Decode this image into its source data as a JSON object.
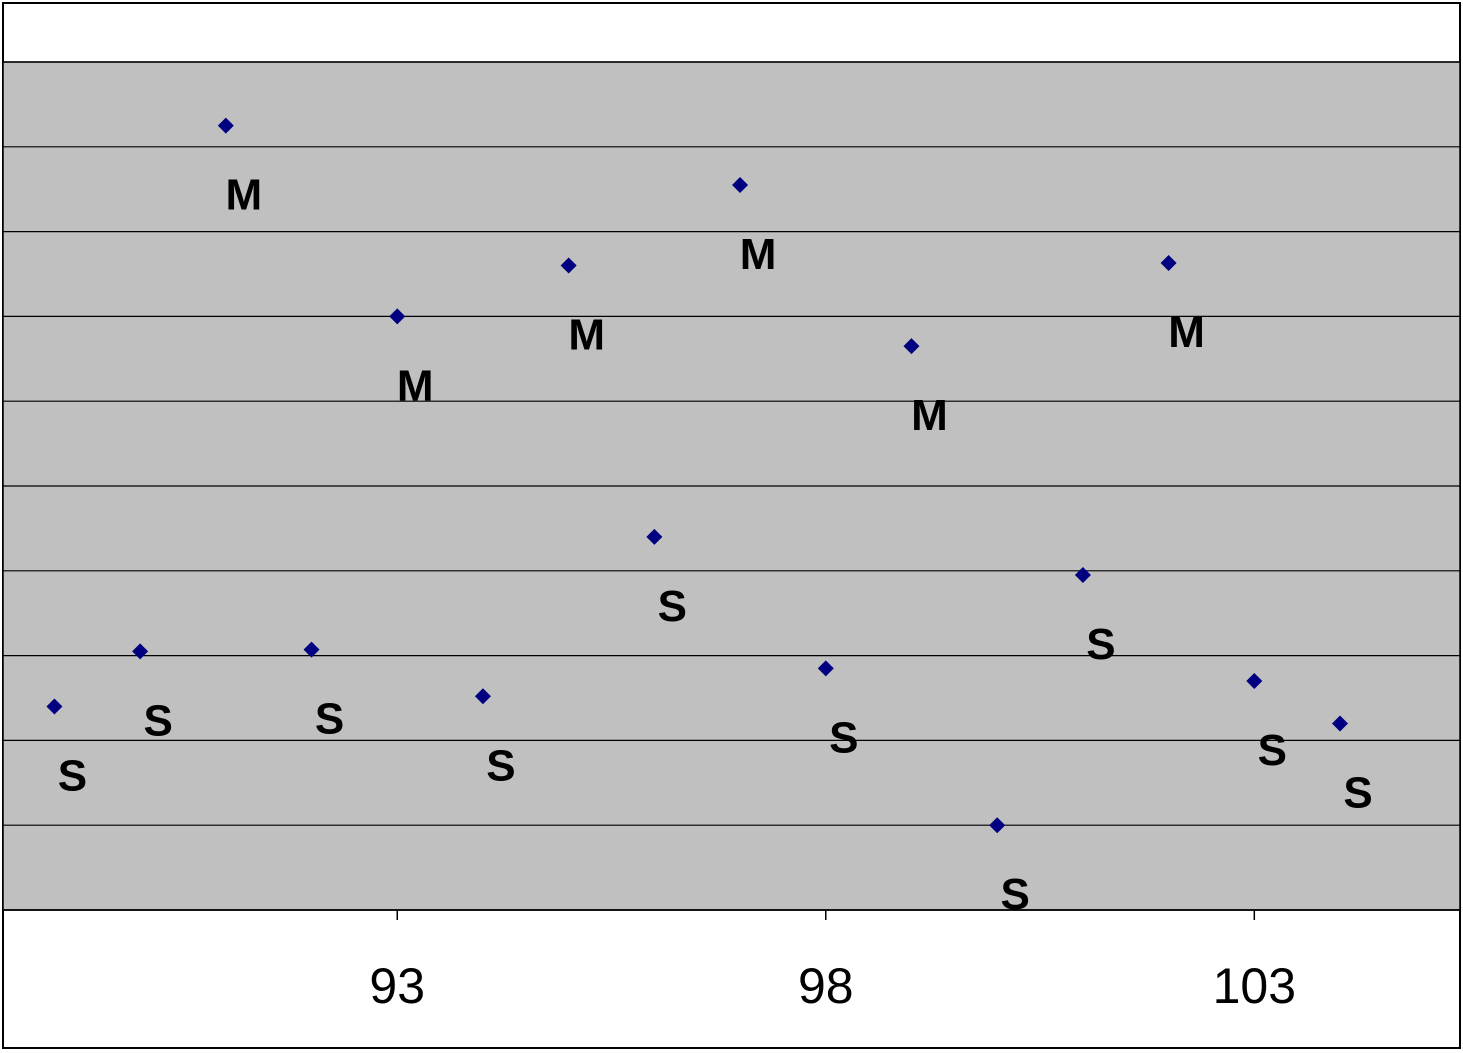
{
  "chart_data": {
    "type": "scatter",
    "title": "",
    "xlabel": "",
    "ylabel": "",
    "xlim": [
      88.4,
      105.4
    ],
    "ylim": [
      0,
      10
    ],
    "grid": true,
    "legend": "none",
    "x_ticks": [
      93,
      98,
      103
    ],
    "x_tick_labels": [
      "93",
      "98",
      "103"
    ],
    "colors": {
      "marker": "#000080",
      "plot_background": "#c0c0c0",
      "gridline": "#000000",
      "page_background": "#ffffff"
    },
    "points": [
      {
        "x": 89,
        "y": 2.4,
        "label": "S"
      },
      {
        "x": 90,
        "y": 3.05,
        "label": "S"
      },
      {
        "x": 91,
        "y": 9.25,
        "label": "M"
      },
      {
        "x": 92,
        "y": 3.07,
        "label": "S"
      },
      {
        "x": 93,
        "y": 7.0,
        "label": "M"
      },
      {
        "x": 94,
        "y": 2.52,
        "label": "S"
      },
      {
        "x": 95,
        "y": 7.6,
        "label": "M"
      },
      {
        "x": 96,
        "y": 4.4,
        "label": "S"
      },
      {
        "x": 97,
        "y": 8.55,
        "label": "M"
      },
      {
        "x": 98,
        "y": 2.85,
        "label": "S"
      },
      {
        "x": 99,
        "y": 6.65,
        "label": "M"
      },
      {
        "x": 100,
        "y": 1.0,
        "label": "S"
      },
      {
        "x": 101,
        "y": 3.95,
        "label": "S"
      },
      {
        "x": 102,
        "y": 7.63,
        "label": "M"
      },
      {
        "x": 103,
        "y": 2.7,
        "label": "S"
      },
      {
        "x": 104,
        "y": 2.2,
        "label": "S"
      }
    ]
  }
}
